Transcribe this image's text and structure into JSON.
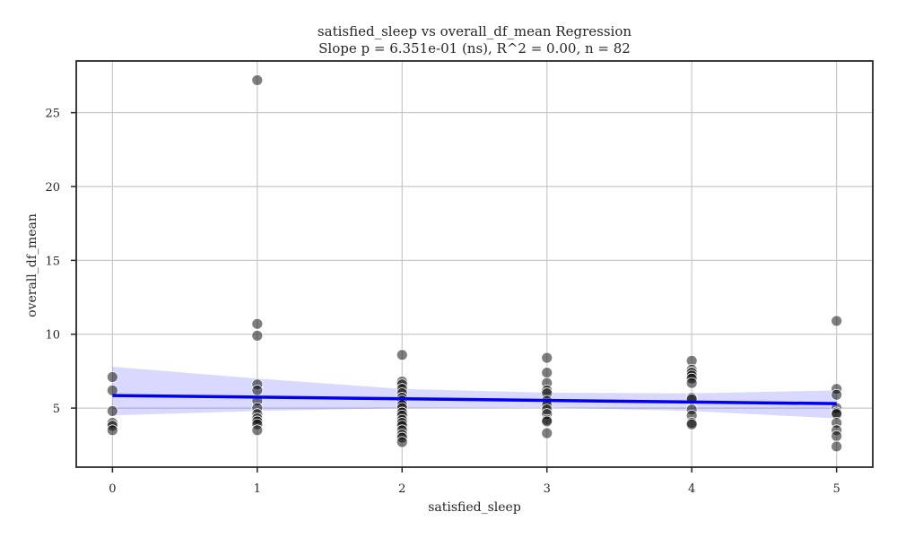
{
  "chart_data": {
    "type": "scatter",
    "title": "satisfied_sleep vs overall_df_mean Regression",
    "subtitle": "Slope p = 6.351e-01 (ns), R^2 = 0.00, n = 82",
    "xlabel": "satisfied_sleep",
    "ylabel": "overall_df_mean",
    "xlim": [
      -0.25,
      5.25
    ],
    "ylim": [
      1.0,
      28.5
    ],
    "x_ticks": [
      0,
      1,
      2,
      3,
      4,
      5
    ],
    "y_ticks": [
      5,
      10,
      15,
      20,
      25
    ],
    "grid": true,
    "points": [
      {
        "x": 0,
        "y": 7.1
      },
      {
        "x": 0,
        "y": 6.2
      },
      {
        "x": 0,
        "y": 4.8
      },
      {
        "x": 0,
        "y": 4.0
      },
      {
        "x": 0,
        "y": 3.8
      },
      {
        "x": 0,
        "y": 3.5
      },
      {
        "x": 1,
        "y": 27.2
      },
      {
        "x": 1,
        "y": 10.7
      },
      {
        "x": 1,
        "y": 9.9
      },
      {
        "x": 1,
        "y": 6.6
      },
      {
        "x": 1,
        "y": 6.2
      },
      {
        "x": 1,
        "y": 5.5
      },
      {
        "x": 1,
        "y": 5.0
      },
      {
        "x": 1,
        "y": 4.6
      },
      {
        "x": 1,
        "y": 4.3
      },
      {
        "x": 1,
        "y": 4.1
      },
      {
        "x": 1,
        "y": 3.9
      },
      {
        "x": 1,
        "y": 3.5
      },
      {
        "x": 2,
        "y": 8.6
      },
      {
        "x": 2,
        "y": 6.8
      },
      {
        "x": 2,
        "y": 6.6
      },
      {
        "x": 2,
        "y": 6.3
      },
      {
        "x": 2,
        "y": 6.0
      },
      {
        "x": 2,
        "y": 5.7
      },
      {
        "x": 2,
        "y": 5.5
      },
      {
        "x": 2,
        "y": 5.2
      },
      {
        "x": 2,
        "y": 5.0
      },
      {
        "x": 2,
        "y": 4.7
      },
      {
        "x": 2,
        "y": 4.5
      },
      {
        "x": 2,
        "y": 4.2
      },
      {
        "x": 2,
        "y": 4.0
      },
      {
        "x": 2,
        "y": 3.8
      },
      {
        "x": 2,
        "y": 3.5
      },
      {
        "x": 2,
        "y": 3.2
      },
      {
        "x": 2,
        "y": 3.0
      },
      {
        "x": 2,
        "y": 2.7
      },
      {
        "x": 3,
        "y": 8.4
      },
      {
        "x": 3,
        "y": 7.4
      },
      {
        "x": 3,
        "y": 6.7
      },
      {
        "x": 3,
        "y": 6.2
      },
      {
        "x": 3,
        "y": 6.0
      },
      {
        "x": 3,
        "y": 5.5
      },
      {
        "x": 3,
        "y": 5.2
      },
      {
        "x": 3,
        "y": 4.9
      },
      {
        "x": 3,
        "y": 4.6
      },
      {
        "x": 3,
        "y": 4.2
      },
      {
        "x": 3,
        "y": 4.1
      },
      {
        "x": 3,
        "y": 3.3
      },
      {
        "x": 4,
        "y": 8.2
      },
      {
        "x": 4,
        "y": 7.6
      },
      {
        "x": 4,
        "y": 7.4
      },
      {
        "x": 4,
        "y": 7.2
      },
      {
        "x": 4,
        "y": 7.0
      },
      {
        "x": 4,
        "y": 6.7
      },
      {
        "x": 4,
        "y": 5.7
      },
      {
        "x": 4,
        "y": 5.6
      },
      {
        "x": 4,
        "y": 4.9
      },
      {
        "x": 4,
        "y": 4.5
      },
      {
        "x": 4,
        "y": 4.0
      },
      {
        "x": 4,
        "y": 3.9
      },
      {
        "x": 5,
        "y": 10.9
      },
      {
        "x": 5,
        "y": 6.3
      },
      {
        "x": 5,
        "y": 5.9
      },
      {
        "x": 5,
        "y": 5.0
      },
      {
        "x": 5,
        "y": 4.7
      },
      {
        "x": 5,
        "y": 4.6
      },
      {
        "x": 5,
        "y": 4.0
      },
      {
        "x": 5,
        "y": 3.5
      },
      {
        "x": 5,
        "y": 3.1
      },
      {
        "x": 5,
        "y": 2.4
      }
    ],
    "regression": {
      "x": [
        0,
        5
      ],
      "y": [
        5.85,
        5.3
      ],
      "ci_x": [
        0,
        1,
        2,
        3,
        4,
        5
      ],
      "ci_upper": [
        7.8,
        7.0,
        6.3,
        6.05,
        6.0,
        6.2
      ],
      "ci_lower": [
        4.5,
        4.8,
        5.0,
        5.05,
        4.8,
        4.3
      ]
    },
    "colors": {
      "points": "#000000",
      "fit_line": "#0000ee",
      "ci_band": "#0000ff"
    }
  }
}
